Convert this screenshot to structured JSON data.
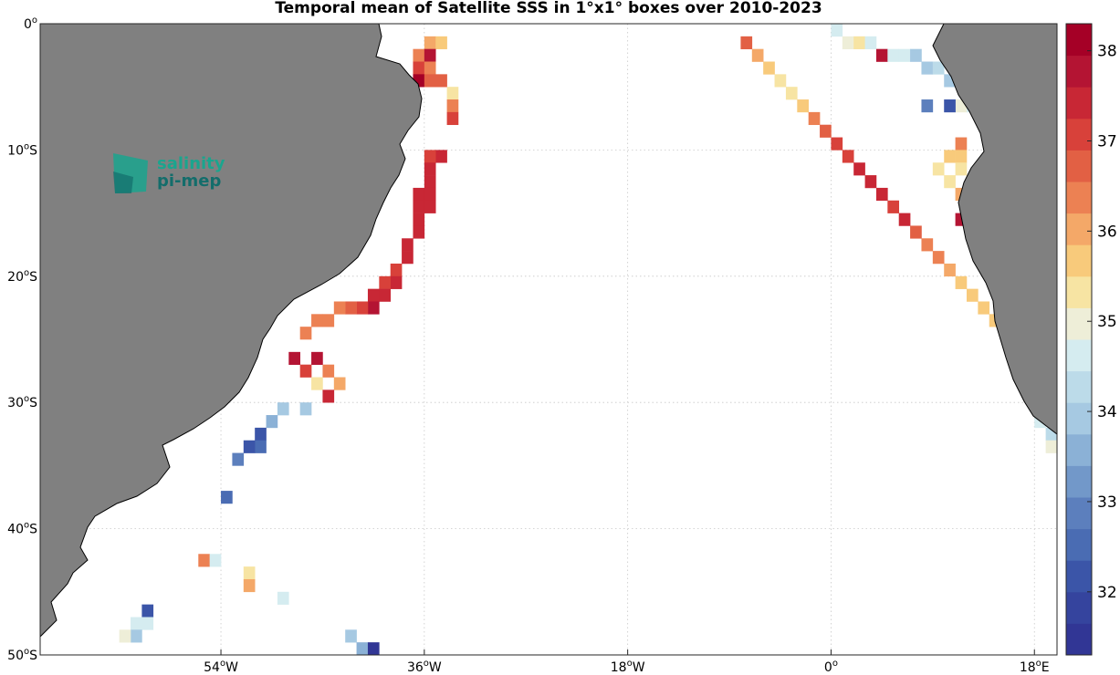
{
  "title": "Temporal mean of Satellite SSS in 1°x1° boxes over 2010-2023",
  "map": {
    "projection": "equirectangular",
    "lon_range": [
      -70,
      20
    ],
    "lat_range": [
      -50,
      0
    ],
    "grid": true,
    "land_color": "#808080",
    "lon_ticks": [
      {
        "value": -54,
        "num": "54",
        "unit": "W"
      },
      {
        "value": -36,
        "num": "36",
        "unit": "W"
      },
      {
        "value": -18,
        "num": "18",
        "unit": "W"
      },
      {
        "value": 0,
        "num": "0",
        "unit": ""
      },
      {
        "value": 18,
        "num": "18",
        "unit": "E"
      }
    ],
    "lat_ticks": [
      {
        "value": 0,
        "num": "0",
        "unit": ""
      },
      {
        "value": -10,
        "num": "10",
        "unit": "S"
      },
      {
        "value": -20,
        "num": "20",
        "unit": "S"
      },
      {
        "value": -30,
        "num": "30",
        "unit": "S"
      },
      {
        "value": -40,
        "num": "40",
        "unit": "S"
      },
      {
        "value": -50,
        "num": "50",
        "unit": "S"
      }
    ]
  },
  "logo": {
    "line1": "salinity",
    "line2": "pi-mep",
    "color1": "#1aa58e",
    "color2": "#136d6b"
  },
  "colorbar": {
    "min": 31.3,
    "max": 38.3,
    "tick_labels": [
      "32",
      "33",
      "34",
      "35",
      "36",
      "37",
      "38"
    ],
    "tick_values": [
      32,
      33,
      34,
      35,
      36,
      37,
      38
    ],
    "colors": [
      "#313695",
      "#35449e",
      "#3b55a8",
      "#4a6cb3",
      "#5c7fbd",
      "#7298c9",
      "#8bb1d6",
      "#a6c9e2",
      "#bcdbe9",
      "#d5ecf0",
      "#eeeed8",
      "#f7e4a3",
      "#f8ca7b",
      "#f4a868",
      "#ec8153",
      "#e26044",
      "#d8413a",
      "#c82735",
      "#b41433",
      "#a50026"
    ]
  },
  "chart_data": {
    "type": "heatmap",
    "title": "Temporal mean of Satellite SSS in 1°x1° boxes over 2010-2023",
    "xlabel": "",
    "ylabel": "",
    "x_unit": "degrees longitude",
    "y_unit": "degrees latitude",
    "xlim": [
      -70,
      20
    ],
    "ylim": [
      -50,
      0
    ],
    "value_range": [
      31.3,
      38.3
    ],
    "points": [
      {
        "lon": -36,
        "lat": -1,
        "sss": 36.1
      },
      {
        "lon": -35,
        "lat": -1,
        "sss": 35.8
      },
      {
        "lon": -37,
        "lat": -2,
        "sss": 36.4
      },
      {
        "lon": -36,
        "lat": -2,
        "sss": 37.6
      },
      {
        "lon": -37,
        "lat": -3,
        "sss": 37.0
      },
      {
        "lon": -36,
        "lat": -3,
        "sss": 36.2
      },
      {
        "lon": -37,
        "lat": -4,
        "sss": 38.0
      },
      {
        "lon": -36,
        "lat": -4,
        "sss": 36.8
      },
      {
        "lon": -35,
        "lat": -4,
        "sss": 36.6
      },
      {
        "lon": -34,
        "lat": -5,
        "sss": 35.2
      },
      {
        "lon": -34,
        "lat": -6,
        "sss": 36.2
      },
      {
        "lon": -34,
        "lat": -7,
        "sss": 37.0
      },
      {
        "lon": -35,
        "lat": -10,
        "sss": 37.3
      },
      {
        "lon": -36,
        "lat": -10,
        "sss": 37.2
      },
      {
        "lon": -36,
        "lat": -11,
        "sss": 37.4
      },
      {
        "lon": -36,
        "lat": -12,
        "sss": 37.5
      },
      {
        "lon": -37,
        "lat": -13,
        "sss": 37.3
      },
      {
        "lon": -36,
        "lat": -13,
        "sss": 37.5
      },
      {
        "lon": -37,
        "lat": -14,
        "sss": 37.4
      },
      {
        "lon": -36,
        "lat": -14,
        "sss": 37.3
      },
      {
        "lon": -37,
        "lat": -15,
        "sss": 37.3
      },
      {
        "lon": -37,
        "lat": -16,
        "sss": 37.4
      },
      {
        "lon": -38,
        "lat": -17,
        "sss": 37.3
      },
      {
        "lon": -38,
        "lat": -18,
        "sss": 37.4
      },
      {
        "lon": -39,
        "lat": -19,
        "sss": 37.2
      },
      {
        "lon": -39,
        "lat": -20,
        "sss": 37.3
      },
      {
        "lon": -40,
        "lat": -20,
        "sss": 37.1
      },
      {
        "lon": -40,
        "lat": -21,
        "sss": 37.4
      },
      {
        "lon": -41,
        "lat": -21,
        "sss": 37.3
      },
      {
        "lon": -41,
        "lat": -22,
        "sss": 37.6
      },
      {
        "lon": -42,
        "lat": -22,
        "sss": 37.2
      },
      {
        "lon": -43,
        "lat": -22,
        "sss": 36.7
      },
      {
        "lon": -44,
        "lat": -22,
        "sss": 36.5
      },
      {
        "lon": -45,
        "lat": -23,
        "sss": 36.4
      },
      {
        "lon": -46,
        "lat": -23,
        "sss": 36.3
      },
      {
        "lon": -47,
        "lat": -24,
        "sss": 36.2
      },
      {
        "lon": -48,
        "lat": -26,
        "sss": 37.9
      },
      {
        "lon": -46,
        "lat": -26,
        "sss": 37.6
      },
      {
        "lon": -47,
        "lat": -27,
        "sss": 37.2
      },
      {
        "lon": -45,
        "lat": -27,
        "sss": 36.5
      },
      {
        "lon": -44,
        "lat": -28,
        "sss": 36.0
      },
      {
        "lon": -46,
        "lat": -28,
        "sss": 35.2
      },
      {
        "lon": -45,
        "lat": -29,
        "sss": 37.4
      },
      {
        "lon": -47,
        "lat": -30,
        "sss": 34.0
      },
      {
        "lon": -49,
        "lat": -30,
        "sss": 33.9
      },
      {
        "lon": -50,
        "lat": -31,
        "sss": 33.6
      },
      {
        "lon": -51,
        "lat": -32,
        "sss": 32.2
      },
      {
        "lon": -51,
        "lat": -33,
        "sss": 32.4
      },
      {
        "lon": -52,
        "lat": -33,
        "sss": 32.3
      },
      {
        "lon": -53,
        "lat": -34,
        "sss": 33.0
      },
      {
        "lon": -54,
        "lat": -37,
        "sss": 32.5
      },
      {
        "lon": -56,
        "lat": -42,
        "sss": 36.5
      },
      {
        "lon": -55,
        "lat": -42,
        "sss": 34.6
      },
      {
        "lon": -52,
        "lat": -43,
        "sss": 35.2
      },
      {
        "lon": -52,
        "lat": -44,
        "sss": 36.0
      },
      {
        "lon": -49,
        "lat": -45,
        "sss": 34.8
      },
      {
        "lon": -61,
        "lat": -46,
        "sss": 32.1
      },
      {
        "lon": -62,
        "lat": -47,
        "sss": 34.8
      },
      {
        "lon": -61,
        "lat": -47,
        "sss": 34.7
      },
      {
        "lon": -62,
        "lat": -48,
        "sss": 33.9
      },
      {
        "lon": -63,
        "lat": -48,
        "sss": 35.0
      },
      {
        "lon": -43,
        "lat": -48,
        "sss": 33.8
      },
      {
        "lon": -42,
        "lat": -49,
        "sss": 33.7
      },
      {
        "lon": -41,
        "lat": -49,
        "sss": 31.6
      },
      {
        "lon": -41,
        "lat": -50,
        "sss": 33.8
      },
      {
        "lon": -8,
        "lat": -1,
        "sss": 36.7
      },
      {
        "lon": -7,
        "lat": -2,
        "sss": 36.1
      },
      {
        "lon": -6,
        "lat": -3,
        "sss": 35.6
      },
      {
        "lon": -5,
        "lat": -4,
        "sss": 35.4
      },
      {
        "lon": -4,
        "lat": -5,
        "sss": 35.3
      },
      {
        "lon": -3,
        "lat": -6,
        "sss": 35.7
      },
      {
        "lon": -2,
        "lat": -7,
        "sss": 36.2
      },
      {
        "lon": -1,
        "lat": -8,
        "sss": 36.8
      },
      {
        "lon": 0,
        "lat": -9,
        "sss": 37.1
      },
      {
        "lon": 1,
        "lat": -10,
        "sss": 37.2
      },
      {
        "lon": 2,
        "lat": -11,
        "sss": 37.3
      },
      {
        "lon": 3,
        "lat": -12,
        "sss": 37.3
      },
      {
        "lon": 4,
        "lat": -13,
        "sss": 37.4
      },
      {
        "lon": 5,
        "lat": -14,
        "sss": 37.2
      },
      {
        "lon": 6,
        "lat": -15,
        "sss": 37.3
      },
      {
        "lon": 7,
        "lat": -16,
        "sss": 36.7
      },
      {
        "lon": 8,
        "lat": -17,
        "sss": 36.5
      },
      {
        "lon": 9,
        "lat": -18,
        "sss": 36.3
      },
      {
        "lon": 10,
        "lat": -19,
        "sss": 35.9
      },
      {
        "lon": 11,
        "lat": -20,
        "sss": 35.7
      },
      {
        "lon": 12,
        "lat": -21,
        "sss": 35.6
      },
      {
        "lon": 13,
        "lat": -22,
        "sss": 35.5
      },
      {
        "lon": 14,
        "lat": -23,
        "sss": 35.5
      },
      {
        "lon": 15,
        "lat": -24,
        "sss": 35.6
      },
      {
        "lon": 16,
        "lat": -25,
        "sss": 36.1
      },
      {
        "lon": 17,
        "lat": -26,
        "sss": 35.9
      },
      {
        "lon": 18,
        "lat": -27,
        "sss": 35.5
      },
      {
        "lon": 19,
        "lat": -28,
        "sss": 36.6
      },
      {
        "lon": 0,
        "lat": 0,
        "sss": 34.6
      },
      {
        "lon": 1,
        "lat": -1,
        "sss": 35.0
      },
      {
        "lon": 2,
        "lat": -1,
        "sss": 35.3
      },
      {
        "lon": 3,
        "lat": -1,
        "sss": 34.7
      },
      {
        "lon": 4,
        "lat": -2,
        "sss": 37.8
      },
      {
        "lon": 5,
        "lat": -2,
        "sss": 34.8
      },
      {
        "lon": 6,
        "lat": -2,
        "sss": 34.5
      },
      {
        "lon": 7,
        "lat": -2,
        "sss": 33.8
      },
      {
        "lon": 8,
        "lat": -3,
        "sss": 33.9
      },
      {
        "lon": 9,
        "lat": -3,
        "sss": 34.2
      },
      {
        "lon": 10,
        "lat": -4,
        "sss": 33.8
      },
      {
        "lon": 11,
        "lat": -4,
        "sss": 33.6
      },
      {
        "lon": 12,
        "lat": -5,
        "sss": 34.1
      },
      {
        "lon": 13,
        "lat": -5,
        "sss": 34.3
      },
      {
        "lon": 11,
        "lat": -6,
        "sss": 35.1
      },
      {
        "lon": 12,
        "lat": -6,
        "sss": 34.7
      },
      {
        "lon": 13,
        "lat": -6,
        "sss": 32.5
      },
      {
        "lon": 8,
        "lat": -6,
        "sss": 32.9
      },
      {
        "lon": 10,
        "lat": -6,
        "sss": 32.3
      },
      {
        "lon": 13,
        "lat": -7,
        "sss": 36.5
      },
      {
        "lon": 14,
        "lat": -8,
        "sss": 33.9
      },
      {
        "lon": 11,
        "lat": -9,
        "sss": 36.2
      },
      {
        "lon": 10,
        "lat": -10,
        "sss": 35.8
      },
      {
        "lon": 11,
        "lat": -10,
        "sss": 35.5
      },
      {
        "lon": 9,
        "lat": -11,
        "sss": 35.4
      },
      {
        "lon": 11,
        "lat": -11,
        "sss": 35.3
      },
      {
        "lon": 10,
        "lat": -12,
        "sss": 35.4
      },
      {
        "lon": 12,
        "lat": -12,
        "sss": 35.6
      },
      {
        "lon": 11,
        "lat": -13,
        "sss": 36.0
      },
      {
        "lon": 12,
        "lat": -13,
        "sss": 36.3
      },
      {
        "lon": 12,
        "lat": -14,
        "sss": 37.7
      },
      {
        "lon": 13,
        "lat": -14,
        "sss": 36.8
      },
      {
        "lon": 11,
        "lat": -15,
        "sss": 37.6
      },
      {
        "lon": 12,
        "lat": -15,
        "sss": 35.5
      },
      {
        "lon": 12,
        "lat": -16,
        "sss": 34.6
      },
      {
        "lon": 19,
        "lat": -29,
        "sss": 34.9
      },
      {
        "lon": 17,
        "lat": -28,
        "sss": 36.4
      },
      {
        "lon": 18,
        "lat": -29,
        "sss": 34.5
      },
      {
        "lon": 19,
        "lat": -30,
        "sss": 34.3
      },
      {
        "lon": 18,
        "lat": -31,
        "sss": 34.7
      },
      {
        "lon": 19,
        "lat": -32,
        "sss": 34.2
      },
      {
        "lon": 20,
        "lat": -32,
        "sss": 35.6
      },
      {
        "lon": 19,
        "lat": -33,
        "sss": 35.1
      },
      {
        "lon": 20,
        "lat": -33,
        "sss": 35.4
      }
    ]
  }
}
